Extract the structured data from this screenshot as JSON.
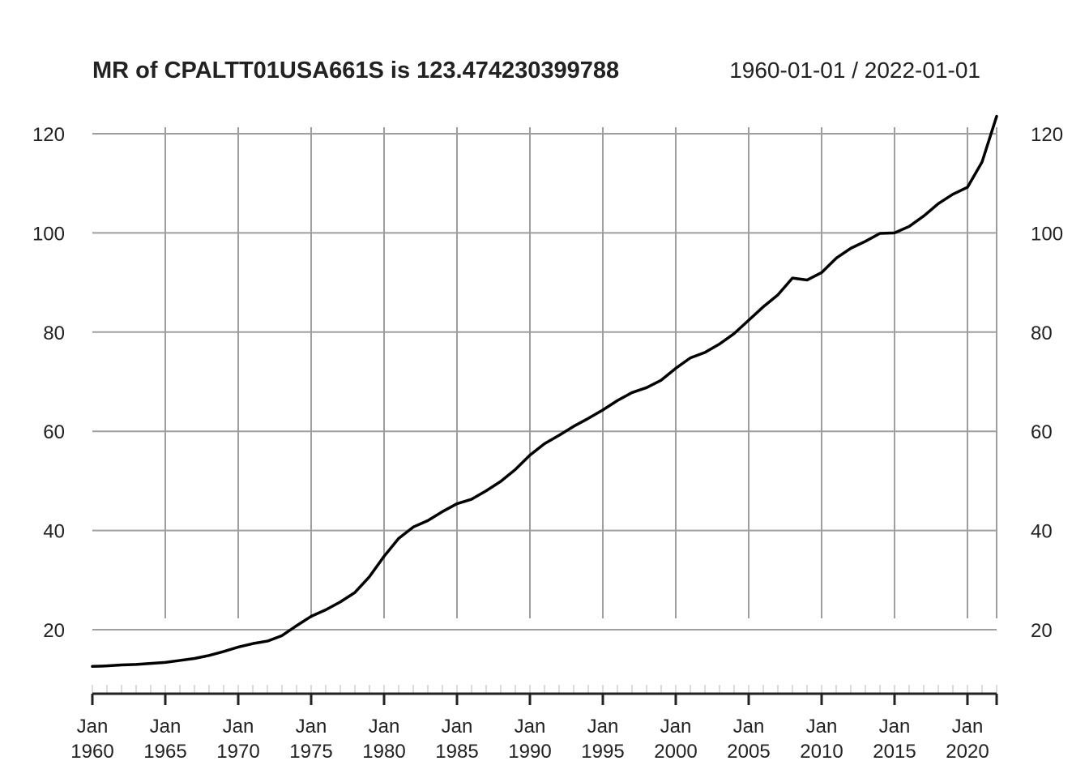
{
  "chart_data": {
    "type": "line",
    "title": "MR of CPALTT01USA661S is 123.474230399788",
    "date_range": "1960-01-01 / 2022-01-01",
    "xlabel": "",
    "ylabel": "",
    "grid": true,
    "ylim": [
      8,
      124
    ],
    "y_ticks": [
      20,
      40,
      60,
      80,
      100,
      120
    ],
    "x_ticks": [
      {
        "year": 1960,
        "month": "Jan",
        "year_label": "1960"
      },
      {
        "year": 1965,
        "month": "Jan",
        "year_label": "1965"
      },
      {
        "year": 1970,
        "month": "Jan",
        "year_label": "1970"
      },
      {
        "year": 1975,
        "month": "Jan",
        "year_label": "1975"
      },
      {
        "year": 1980,
        "month": "Jan",
        "year_label": "1980"
      },
      {
        "year": 1985,
        "month": "Jan",
        "year_label": "1985"
      },
      {
        "year": 1990,
        "month": "Jan",
        "year_label": "1990"
      },
      {
        "year": 1995,
        "month": "Jan",
        "year_label": "1995"
      },
      {
        "year": 2000,
        "month": "Jan",
        "year_label": "2000"
      },
      {
        "year": 2005,
        "month": "Jan",
        "year_label": "2005"
      },
      {
        "year": 2010,
        "month": "Jan",
        "year_label": "2010"
      },
      {
        "year": 2015,
        "month": "Jan",
        "year_label": "2015"
      },
      {
        "year": 2020,
        "month": "Jan",
        "year_label": "2020"
      }
    ],
    "series": [
      {
        "x": [
          1960,
          1961,
          1962,
          1963,
          1964,
          1965,
          1966,
          1967,
          1968,
          1969,
          1970,
          1971,
          1972,
          1973,
          1974,
          1975,
          1976,
          1977,
          1978,
          1979,
          1980,
          1981,
          1982,
          1983,
          1984,
          1985,
          1986,
          1987,
          1988,
          1989,
          1990,
          1991,
          1992,
          1993,
          1994,
          1995,
          1996,
          1997,
          1998,
          1999,
          2000,
          2001,
          2002,
          2003,
          2004,
          2005,
          2006,
          2007,
          2008,
          2009,
          2010,
          2011,
          2012,
          2013,
          2014,
          2015,
          2016,
          2017,
          2018,
          2019,
          2020,
          2021,
          2022
        ],
        "values": [
          12.6,
          12.7,
          12.9,
          13.0,
          13.2,
          13.4,
          13.8,
          14.2,
          14.8,
          15.6,
          16.5,
          17.2,
          17.7,
          18.8,
          20.8,
          22.7,
          24.0,
          25.6,
          27.5,
          30.7,
          34.8,
          38.4,
          40.7,
          42.0,
          43.8,
          45.4,
          46.3,
          48.0,
          49.9,
          52.3,
          55.2,
          57.5,
          59.2,
          61.0,
          62.6,
          64.3,
          66.2,
          67.8,
          68.8,
          70.3,
          72.7,
          74.8,
          75.9,
          77.6,
          79.7,
          82.4,
          85.1,
          87.5,
          90.9,
          90.5,
          92.0,
          94.9,
          96.9,
          98.3,
          99.9,
          100.0,
          101.3,
          103.4,
          105.9,
          107.8,
          109.2,
          114.3,
          123.5
        ]
      }
    ]
  }
}
